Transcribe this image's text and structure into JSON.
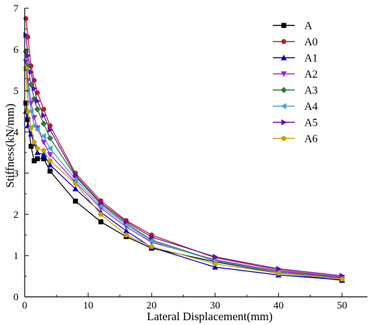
{
  "chart_data": {
    "type": "line",
    "title": "",
    "xlabel": "Lateral Displacement(mm)",
    "ylabel": "Stiffness(kN/mm)",
    "xlim": [
      0,
      54
    ],
    "ylim": [
      0,
      7
    ],
    "xticks": [
      0,
      10,
      20,
      30,
      40,
      50
    ],
    "yticks": [
      0,
      1,
      2,
      3,
      4,
      5,
      6,
      7
    ],
    "grid": false,
    "legend_position": "top-right",
    "series": [
      {
        "name": "A",
        "color": "#000000",
        "marker": "square",
        "points": [
          [
            0.2,
            4.7
          ],
          [
            0.5,
            4.3
          ],
          [
            1,
            3.65
          ],
          [
            1.5,
            3.3
          ],
          [
            2,
            3.35
          ],
          [
            3,
            3.35
          ],
          [
            4,
            3.05
          ],
          [
            8,
            2.32
          ],
          [
            12,
            1.82
          ],
          [
            16,
            1.46
          ],
          [
            20,
            1.18
          ],
          [
            30,
            0.85
          ],
          [
            40,
            0.58
          ],
          [
            50,
            0.4
          ]
        ]
      },
      {
        "name": "A0",
        "color": "#b22222",
        "marker": "circle",
        "points": [
          [
            0.2,
            6.75
          ],
          [
            0.5,
            6.3
          ],
          [
            1,
            5.6
          ],
          [
            1.5,
            5.25
          ],
          [
            2,
            4.95
          ],
          [
            3,
            4.55
          ],
          [
            4,
            4.15
          ],
          [
            8,
            3.0
          ],
          [
            12,
            2.33
          ],
          [
            16,
            1.85
          ],
          [
            20,
            1.5
          ],
          [
            30,
            0.95
          ],
          [
            40,
            0.65
          ],
          [
            50,
            0.48
          ]
        ]
      },
      {
        "name": "A1",
        "color": "#0000cd",
        "marker": "triangle-up",
        "points": [
          [
            0.2,
            4.5
          ],
          [
            0.5,
            4.15
          ],
          [
            1,
            3.95
          ],
          [
            1.5,
            3.72
          ],
          [
            2,
            3.5
          ],
          [
            3,
            3.45
          ],
          [
            4,
            3.2
          ],
          [
            8,
            2.62
          ],
          [
            12,
            2.05
          ],
          [
            16,
            1.6
          ],
          [
            20,
            1.2
          ],
          [
            30,
            0.72
          ],
          [
            40,
            0.53
          ],
          [
            50,
            0.41
          ]
        ]
      },
      {
        "name": "A2",
        "color": "#a020f0",
        "marker": "triangle-down",
        "points": [
          [
            0.2,
            5.7
          ],
          [
            0.5,
            5.25
          ],
          [
            1,
            4.7
          ],
          [
            1.5,
            4.35
          ],
          [
            2,
            4.1
          ],
          [
            3,
            3.75
          ],
          [
            4,
            3.45
          ],
          [
            8,
            2.78
          ],
          [
            12,
            2.15
          ],
          [
            16,
            1.7
          ],
          [
            20,
            1.32
          ],
          [
            30,
            0.9
          ],
          [
            40,
            0.62
          ],
          [
            50,
            0.47
          ]
        ]
      },
      {
        "name": "A3",
        "color": "#2e7d32",
        "marker": "diamond",
        "points": [
          [
            0.2,
            5.95
          ],
          [
            0.5,
            5.6
          ],
          [
            1,
            5.15
          ],
          [
            1.5,
            4.8
          ],
          [
            2,
            4.55
          ],
          [
            3,
            4.2
          ],
          [
            4,
            3.85
          ],
          [
            8,
            2.92
          ],
          [
            12,
            2.25
          ],
          [
            16,
            1.78
          ],
          [
            20,
            1.38
          ],
          [
            30,
            0.88
          ],
          [
            40,
            0.6
          ],
          [
            50,
            0.45
          ]
        ]
      },
      {
        "name": "A4",
        "color": "#4aa3c7",
        "marker": "triangle-left",
        "points": [
          [
            0.2,
            5.5
          ],
          [
            0.5,
            5.0
          ],
          [
            1,
            4.5
          ],
          [
            1.5,
            4.15
          ],
          [
            2,
            4.05
          ],
          [
            3,
            3.9
          ],
          [
            4,
            3.6
          ],
          [
            8,
            2.85
          ],
          [
            12,
            2.2
          ],
          [
            16,
            1.75
          ],
          [
            20,
            1.35
          ],
          [
            30,
            0.87
          ],
          [
            40,
            0.59
          ],
          [
            50,
            0.44
          ]
        ]
      },
      {
        "name": "A5",
        "color": "#6a0dad",
        "marker": "triangle-right",
        "points": [
          [
            0.2,
            6.35
          ],
          [
            0.5,
            5.85
          ],
          [
            1,
            5.45
          ],
          [
            1.5,
            5.05
          ],
          [
            2,
            4.75
          ],
          [
            3,
            4.4
          ],
          [
            4,
            4.05
          ],
          [
            8,
            2.95
          ],
          [
            12,
            2.28
          ],
          [
            16,
            1.82
          ],
          [
            20,
            1.45
          ],
          [
            30,
            0.97
          ],
          [
            40,
            0.68
          ],
          [
            50,
            0.51
          ]
        ]
      },
      {
        "name": "A6",
        "color": "#c8a000",
        "marker": "pentagon",
        "points": [
          [
            0.2,
            5.55
          ],
          [
            0.5,
            4.5
          ],
          [
            1,
            4.1
          ],
          [
            1.5,
            3.75
          ],
          [
            2,
            3.6
          ],
          [
            3,
            3.55
          ],
          [
            4,
            3.3
          ],
          [
            8,
            2.75
          ],
          [
            12,
            2.0
          ],
          [
            16,
            1.5
          ],
          [
            20,
            1.22
          ],
          [
            30,
            0.8
          ],
          [
            40,
            0.57
          ],
          [
            50,
            0.43
          ]
        ]
      }
    ]
  }
}
